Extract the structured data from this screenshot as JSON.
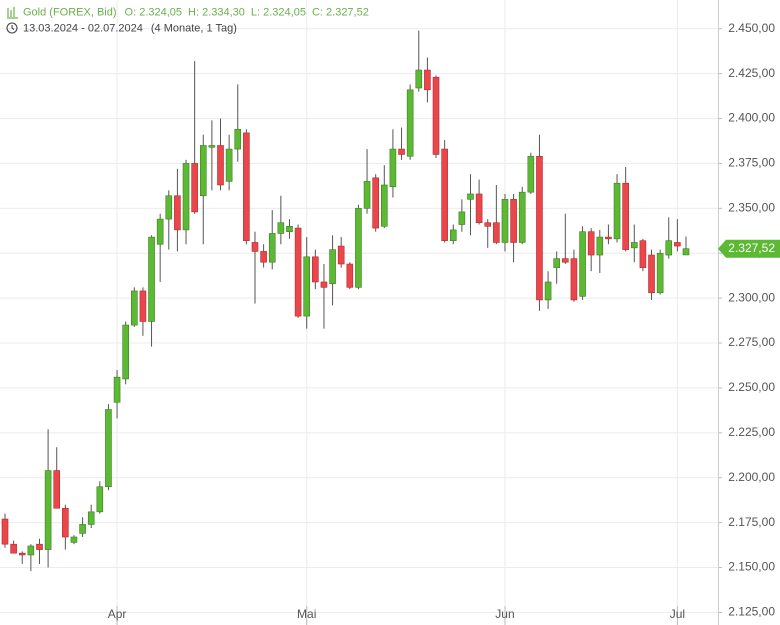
{
  "chart_data": {
    "type": "candlestick",
    "title": "Gold (FOREX, Bid)",
    "ohlc_labels": [
      "O: 2.324,05",
      "H: 2.334,30",
      "L: 2.324,05",
      "C: 2.327,52"
    ],
    "period": "13.03.2024 - 02.07.2024",
    "duration": "(4 Monate, 1 Tag)",
    "categories": [
      null,
      null,
      null,
      null,
      null,
      null,
      null,
      null,
      null,
      null,
      null,
      null,
      null,
      "Apr",
      null,
      null,
      null,
      null,
      null,
      null,
      null,
      null,
      null,
      null,
      null,
      null,
      null,
      null,
      null,
      null,
      null,
      null,
      null,
      null,
      null,
      "Mai",
      null,
      null,
      null,
      null,
      null,
      null,
      null,
      null,
      null,
      null,
      null,
      null,
      null,
      null,
      null,
      null,
      null,
      null,
      null,
      null,
      null,
      null,
      "Jun",
      null,
      null,
      null,
      null,
      null,
      null,
      null,
      null,
      null,
      null,
      null,
      null,
      null,
      null,
      null,
      null,
      null,
      null,
      null,
      "Jul",
      null
    ],
    "open": [
      2177,
      2163,
      2158,
      2157,
      2163,
      2160,
      2204,
      2183,
      2164,
      2169,
      2174,
      2181,
      2195,
      2242,
      2255,
      2285,
      2304,
      2287,
      2330,
      2344,
      2357,
      2338,
      2375,
      2357,
      2384,
      2385,
      2365,
      2383,
      2392,
      2331,
      2326,
      2320,
      2336,
      2337,
      2339,
      2290,
      2323,
      2309,
      2308,
      2329,
      2319,
      2306,
      2350,
      2367,
      2340,
      2362,
      2383,
      2379,
      2417,
      2427,
      2423,
      2383,
      2332,
      2341,
      2355,
      2358,
      2342,
      2342,
      2331,
      2355,
      2331,
      2359,
      2379,
      2299,
      2317,
      2322,
      2322,
      2301,
      2337,
      2324,
      2334,
      2333,
      2364,
      2328,
      2332,
      2324,
      2303,
      2324,
      2331,
      2324.05
    ],
    "high": [
      2180,
      2165,
      2159,
      2163,
      2166,
      2227,
      2217,
      2185,
      2168,
      2178,
      2185,
      2198,
      2241,
      2260,
      2287,
      2306,
      2306,
      2335,
      2347,
      2360,
      2372,
      2377,
      2432,
      2391,
      2399,
      2400,
      2391,
      2419,
      2394,
      2337,
      2330,
      2349,
      2357,
      2344,
      2341,
      2334,
      2327,
      2319,
      2335,
      2334,
      2320,
      2352,
      2383,
      2369,
      2374,
      2394,
      2395,
      2419,
      2449,
      2434,
      2424,
      2388,
      2341,
      2355,
      2369,
      2366,
      2344,
      2363,
      2358,
      2358,
      2362,
      2381,
      2391,
      2315,
      2326,
      2347,
      2327,
      2340,
      2339,
      2338,
      2341,
      2369,
      2373,
      2341,
      2333,
      2327,
      2327,
      2345,
      2344,
      2334.3
    ],
    "low": [
      2161,
      2158,
      2152,
      2148,
      2152,
      2150,
      2183,
      2160,
      2163,
      2167,
      2172,
      2180,
      2193,
      2233,
      2252,
      2284,
      2279,
      2273,
      2309,
      2327,
      2326,
      2330,
      2347,
      2330,
      2360,
      2360,
      2360,
      2376,
      2330,
      2297,
      2317,
      2316,
      2330,
      2333,
      2289,
      2283,
      2305,
      2283,
      2296,
      2317,
      2305,
      2305,
      2347,
      2337,
      2339,
      2356,
      2377,
      2377,
      2415,
      2409,
      2378,
      2331,
      2330,
      2337,
      2335,
      2341,
      2328,
      2330,
      2326,
      2320,
      2330,
      2358,
      2293,
      2294,
      2308,
      2319,
      2298,
      2299,
      2315,
      2314,
      2330,
      2331,
      2326,
      2320,
      2315,
      2299,
      2302,
      2322,
      2326,
      2324.05
    ],
    "close": [
      2163,
      2158,
      2157,
      2162,
      2160,
      2204,
      2183,
      2167,
      2167,
      2174,
      2181,
      2195,
      2238,
      2256,
      2285,
      2304,
      2287,
      2334,
      2344,
      2357,
      2338,
      2375,
      2348,
      2385,
      2385,
      2363,
      2383,
      2394,
      2332,
      2326,
      2320,
      2336,
      2342,
      2340,
      2290,
      2323,
      2309,
      2306,
      2327,
      2319,
      2306,
      2350,
      2365,
      2339,
      2363,
      2383,
      2380,
      2416,
      2427,
      2416,
      2380,
      2332,
      2338,
      2348,
      2358,
      2342,
      2340,
      2331,
      2355,
      2331,
      2359,
      2379,
      2299,
      2309,
      2322,
      2320,
      2299,
      2337,
      2324,
      2334,
      2333,
      2364,
      2327,
      2331,
      2317,
      2303,
      2325,
      2332,
      2329,
      2327.52
    ],
    "up_color": "#5cb934",
    "down_color": "#e9474b",
    "last_price": {
      "value": 2327.52,
      "label": "2.327,52"
    },
    "ylim": [
      2118,
      2466
    ],
    "yticks": [
      {
        "value": 2125,
        "label": "2.125,00"
      },
      {
        "value": 2150,
        "label": "2.150,00"
      },
      {
        "value": 2175,
        "label": "2.175,00"
      },
      {
        "value": 2200,
        "label": "2.200,00"
      },
      {
        "value": 2225,
        "label": "2.225,00"
      },
      {
        "value": 2250,
        "label": "2.250,00"
      },
      {
        "value": 2275,
        "label": "2.275,00"
      },
      {
        "value": 2300,
        "label": "2.300,00"
      },
      {
        "value": 2325,
        "label": "2.325,00"
      },
      {
        "value": 2350,
        "label": "2.350,00"
      },
      {
        "value": 2375,
        "label": "2.375,00"
      },
      {
        "value": 2400,
        "label": "2.400,00"
      },
      {
        "value": 2425,
        "label": "2.425,00"
      },
      {
        "value": 2450,
        "label": "2.450,00"
      }
    ],
    "grid": true
  }
}
